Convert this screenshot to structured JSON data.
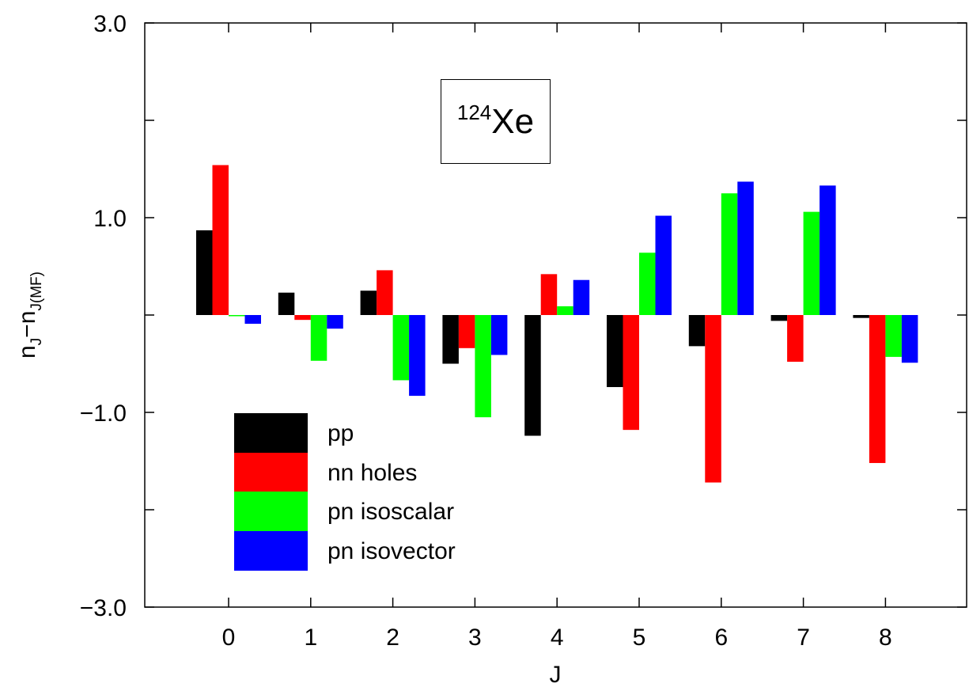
{
  "chart_data": {
    "type": "bar",
    "xlabel": "J",
    "ylabel_main": "n",
    "ylabel_sub1": "J",
    "ylabel_mid": "−n",
    "ylabel_sub2": "J(MF)",
    "categories": [
      "0",
      "1",
      "2",
      "3",
      "4",
      "5",
      "6",
      "7",
      "8"
    ],
    "ylim": [
      -3.0,
      3.0
    ],
    "yticks_labeled": [
      "3.0",
      "1.0",
      "−1.0",
      "−3.0"
    ],
    "yticks_labeled_values": [
      3.0,
      1.0,
      -1.0,
      -3.0
    ],
    "yticks_minor": [
      2.0,
      0.0,
      -2.0
    ],
    "series": [
      {
        "name": "pp",
        "color": "#000000",
        "values": [
          0.87,
          0.23,
          0.25,
          -0.5,
          -1.24,
          -0.74,
          -0.32,
          -0.06,
          -0.03
        ]
      },
      {
        "name": "nn holes",
        "color": "#ff0000",
        "values": [
          1.54,
          -0.05,
          0.46,
          -0.34,
          0.42,
          -1.18,
          -1.72,
          -0.48,
          -1.52
        ]
      },
      {
        "name": "pn isoscalar",
        "color": "#00ff00",
        "values": [
          -0.01,
          -0.47,
          -0.67,
          -1.05,
          0.09,
          0.64,
          1.25,
          1.06,
          -0.43
        ]
      },
      {
        "name": "pn isovector",
        "color": "#0000ff",
        "values": [
          -0.09,
          -0.14,
          -0.83,
          -0.41,
          0.36,
          1.02,
          1.37,
          1.33,
          -0.49
        ]
      }
    ],
    "annotation": {
      "mass": "124",
      "element": "Xe"
    },
    "grid": false,
    "legend_position": "bottom-left"
  }
}
